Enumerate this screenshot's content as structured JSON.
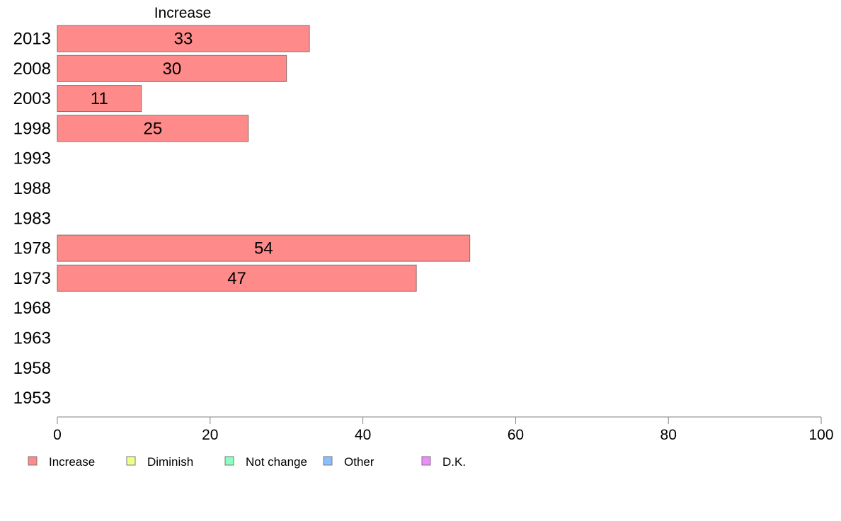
{
  "chart_data": {
    "type": "bar",
    "orientation": "horizontal",
    "title": "Increase",
    "categories": [
      "2013",
      "2008",
      "2003",
      "1998",
      "1993",
      "1988",
      "1983",
      "1978",
      "1973",
      "1968",
      "1963",
      "1958",
      "1953"
    ],
    "series": [
      {
        "name": "Increase",
        "color": "#ff8a8a",
        "values": [
          33,
          30,
          11,
          25,
          null,
          null,
          null,
          54,
          47,
          null,
          null,
          null,
          null
        ],
        "labels": [
          "33",
          "30",
          "11",
          "25",
          "",
          "",
          "",
          "54",
          "47",
          "",
          "",
          "",
          ""
        ]
      }
    ],
    "xlim": [
      0,
      100
    ],
    "xticks": [
      "0",
      "20",
      "40",
      "60",
      "80",
      "100"
    ],
    "grid": false,
    "legend": {
      "placement": "bottom-left",
      "items": [
        {
          "label": "Increase",
          "color": "#ff8a8a"
        },
        {
          "label": "Diminish",
          "color": "#f0ff8a"
        },
        {
          "label": "Not change",
          "color": "#8affbe"
        },
        {
          "label": "Other",
          "color": "#8abeff"
        },
        {
          "label": "D.K.",
          "color": "#f08aff"
        }
      ]
    }
  }
}
